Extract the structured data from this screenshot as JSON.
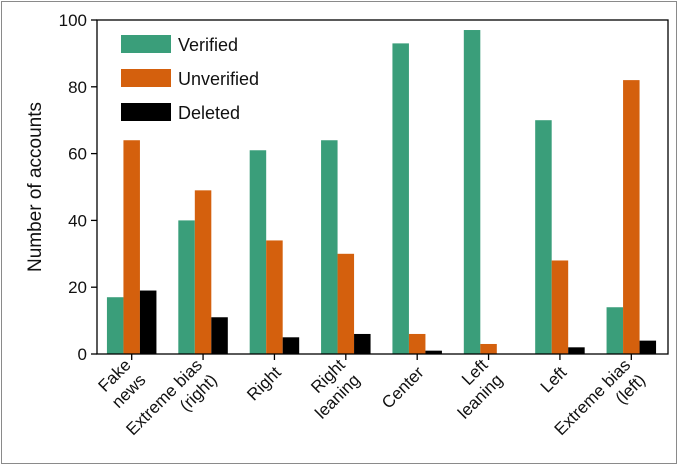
{
  "chart_data": {
    "type": "bar",
    "ylabel": "Number of accounts",
    "ylim": [
      0,
      100
    ],
    "yticks": [
      0,
      20,
      40,
      60,
      80,
      100
    ],
    "categories": [
      [
        "Fake",
        "news"
      ],
      [
        "Extreme bias",
        "(right)"
      ],
      [
        "Right"
      ],
      [
        "Right",
        "leaning"
      ],
      [
        "Center"
      ],
      [
        "Left",
        "leaning"
      ],
      [
        "Left"
      ],
      [
        "Extreme bias",
        "(left)"
      ]
    ],
    "series": [
      {
        "name": "Verified",
        "color": "#3a9e7a",
        "values": [
          17,
          40,
          61,
          64,
          93,
          97,
          70,
          14
        ]
      },
      {
        "name": "Unverified",
        "color": "#d4600d",
        "values": [
          64,
          49,
          34,
          30,
          6,
          3,
          28,
          82
        ]
      },
      {
        "name": "Deleted",
        "color": "#000000",
        "values": [
          19,
          11,
          5,
          6,
          1,
          0,
          2,
          4
        ]
      }
    ],
    "legend_position": "top-left"
  }
}
